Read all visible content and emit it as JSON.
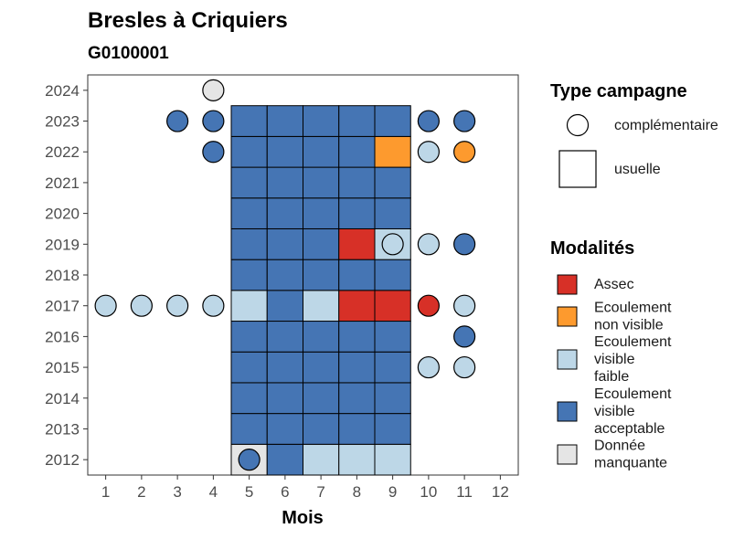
{
  "chart_data": {
    "type": "heatmap",
    "title": "Bresles à Criquiers",
    "subtitle": "G0100001",
    "xlabel": "Mois",
    "ylabel": "",
    "x_ticks": [
      "1",
      "2",
      "3",
      "4",
      "5",
      "6",
      "7",
      "8",
      "9",
      "10",
      "11",
      "12"
    ],
    "y_ticks": [
      "2012",
      "2013",
      "2014",
      "2015",
      "2016",
      "2017",
      "2018",
      "2019",
      "2020",
      "2021",
      "2022",
      "2023",
      "2024"
    ],
    "xlim": [
      0.5,
      12.5
    ],
    "ylim": [
      2011.5,
      2024.5
    ],
    "grid": false,
    "colors": {
      "assec": "#d73027",
      "ecoulement_non_visible": "#fd9a2e",
      "ecoulement_visible_faible": "#bdd7e7",
      "ecoulement_visible_acceptable": "#4575b4",
      "donnee_manquante": "#e5e5e5"
    },
    "legend_shape": {
      "title": "Type campagne",
      "items": [
        {
          "label": "complémentaire",
          "shape": "circle"
        },
        {
          "label": "usuelle",
          "shape": "square"
        }
      ]
    },
    "legend_fill": {
      "title": "Modalités",
      "items": [
        {
          "key": "assec",
          "lines": [
            "Assec"
          ]
        },
        {
          "key": "ecoulement_non_visible",
          "lines": [
            "Ecoulement",
            "non visible"
          ]
        },
        {
          "key": "ecoulement_visible_faible",
          "lines": [
            "Ecoulement",
            "visible",
            "faible"
          ]
        },
        {
          "key": "ecoulement_visible_acceptable",
          "lines": [
            "Ecoulement",
            "visible",
            "acceptable"
          ]
        },
        {
          "key": "donnee_manquante",
          "lines": [
            "Donnée",
            "manquante"
          ]
        }
      ]
    },
    "usuelle": [
      {
        "year": 2012,
        "months": [
          5,
          6,
          7,
          8,
          9
        ],
        "values": [
          "donnee_manquante",
          "ecoulement_visible_acceptable",
          "ecoulement_visible_faible",
          "ecoulement_visible_faible",
          "ecoulement_visible_faible"
        ]
      },
      {
        "year": 2013,
        "months": [
          5,
          6,
          7,
          8,
          9
        ],
        "values": [
          "ecoulement_visible_acceptable",
          "ecoulement_visible_acceptable",
          "ecoulement_visible_acceptable",
          "ecoulement_visible_acceptable",
          "ecoulement_visible_acceptable"
        ]
      },
      {
        "year": 2014,
        "months": [
          5,
          6,
          7,
          8,
          9
        ],
        "values": [
          "ecoulement_visible_acceptable",
          "ecoulement_visible_acceptable",
          "ecoulement_visible_acceptable",
          "ecoulement_visible_acceptable",
          "ecoulement_visible_acceptable"
        ]
      },
      {
        "year": 2015,
        "months": [
          5,
          6,
          7,
          8,
          9
        ],
        "values": [
          "ecoulement_visible_acceptable",
          "ecoulement_visible_acceptable",
          "ecoulement_visible_acceptable",
          "ecoulement_visible_acceptable",
          "ecoulement_visible_acceptable"
        ]
      },
      {
        "year": 2016,
        "months": [
          5,
          6,
          7,
          8,
          9
        ],
        "values": [
          "ecoulement_visible_acceptable",
          "ecoulement_visible_acceptable",
          "ecoulement_visible_acceptable",
          "ecoulement_visible_acceptable",
          "ecoulement_visible_acceptable"
        ]
      },
      {
        "year": 2017,
        "months": [
          5,
          6,
          7,
          8,
          9
        ],
        "values": [
          "ecoulement_visible_faible",
          "ecoulement_visible_acceptable",
          "ecoulement_visible_faible",
          "assec",
          "assec"
        ]
      },
      {
        "year": 2018,
        "months": [
          5,
          6,
          7,
          8,
          9
        ],
        "values": [
          "ecoulement_visible_acceptable",
          "ecoulement_visible_acceptable",
          "ecoulement_visible_acceptable",
          "ecoulement_visible_acceptable",
          "ecoulement_visible_acceptable"
        ]
      },
      {
        "year": 2019,
        "months": [
          5,
          6,
          7,
          8,
          9
        ],
        "values": [
          "ecoulement_visible_acceptable",
          "ecoulement_visible_acceptable",
          "ecoulement_visible_acceptable",
          "assec",
          "ecoulement_visible_faible"
        ]
      },
      {
        "year": 2020,
        "months": [
          5,
          6,
          7,
          8,
          9
        ],
        "values": [
          "ecoulement_visible_acceptable",
          "ecoulement_visible_acceptable",
          "ecoulement_visible_acceptable",
          "ecoulement_visible_acceptable",
          "ecoulement_visible_acceptable"
        ]
      },
      {
        "year": 2021,
        "months": [
          5,
          6,
          7,
          8,
          9
        ],
        "values": [
          "ecoulement_visible_acceptable",
          "ecoulement_visible_acceptable",
          "ecoulement_visible_acceptable",
          "ecoulement_visible_acceptable",
          "ecoulement_visible_acceptable"
        ]
      },
      {
        "year": 2022,
        "months": [
          5,
          6,
          7,
          8,
          9
        ],
        "values": [
          "ecoulement_visible_acceptable",
          "ecoulement_visible_acceptable",
          "ecoulement_visible_acceptable",
          "ecoulement_visible_acceptable",
          "ecoulement_non_visible"
        ]
      },
      {
        "year": 2023,
        "months": [
          5,
          6,
          7,
          8,
          9
        ],
        "values": [
          "ecoulement_visible_acceptable",
          "ecoulement_visible_acceptable",
          "ecoulement_visible_acceptable",
          "ecoulement_visible_acceptable",
          "ecoulement_visible_acceptable"
        ]
      }
    ],
    "complementaire": [
      {
        "year": 2012,
        "month": 5,
        "value": "ecoulement_visible_acceptable"
      },
      {
        "year": 2015,
        "month": 10,
        "value": "ecoulement_visible_faible"
      },
      {
        "year": 2015,
        "month": 11,
        "value": "ecoulement_visible_faible"
      },
      {
        "year": 2016,
        "month": 11,
        "value": "ecoulement_visible_acceptable"
      },
      {
        "year": 2017,
        "month": 1,
        "value": "ecoulement_visible_faible"
      },
      {
        "year": 2017,
        "month": 2,
        "value": "ecoulement_visible_faible"
      },
      {
        "year": 2017,
        "month": 3,
        "value": "ecoulement_visible_faible"
      },
      {
        "year": 2017,
        "month": 4,
        "value": "ecoulement_visible_faible"
      },
      {
        "year": 2017,
        "month": 10,
        "value": "assec"
      },
      {
        "year": 2017,
        "month": 11,
        "value": "ecoulement_visible_faible"
      },
      {
        "year": 2019,
        "month": 9,
        "value": "ecoulement_visible_faible"
      },
      {
        "year": 2019,
        "month": 10,
        "value": "ecoulement_visible_faible"
      },
      {
        "year": 2019,
        "month": 11,
        "value": "ecoulement_visible_acceptable"
      },
      {
        "year": 2022,
        "month": 4,
        "value": "ecoulement_visible_acceptable"
      },
      {
        "year": 2022,
        "month": 10,
        "value": "ecoulement_visible_faible"
      },
      {
        "year": 2022,
        "month": 11,
        "value": "ecoulement_non_visible"
      },
      {
        "year": 2023,
        "month": 3,
        "value": "ecoulement_visible_acceptable"
      },
      {
        "year": 2023,
        "month": 4,
        "value": "ecoulement_visible_acceptable"
      },
      {
        "year": 2023,
        "month": 10,
        "value": "ecoulement_visible_acceptable"
      },
      {
        "year": 2023,
        "month": 11,
        "value": "ecoulement_visible_acceptable"
      },
      {
        "year": 2024,
        "month": 4,
        "value": "donnee_manquante"
      }
    ]
  }
}
